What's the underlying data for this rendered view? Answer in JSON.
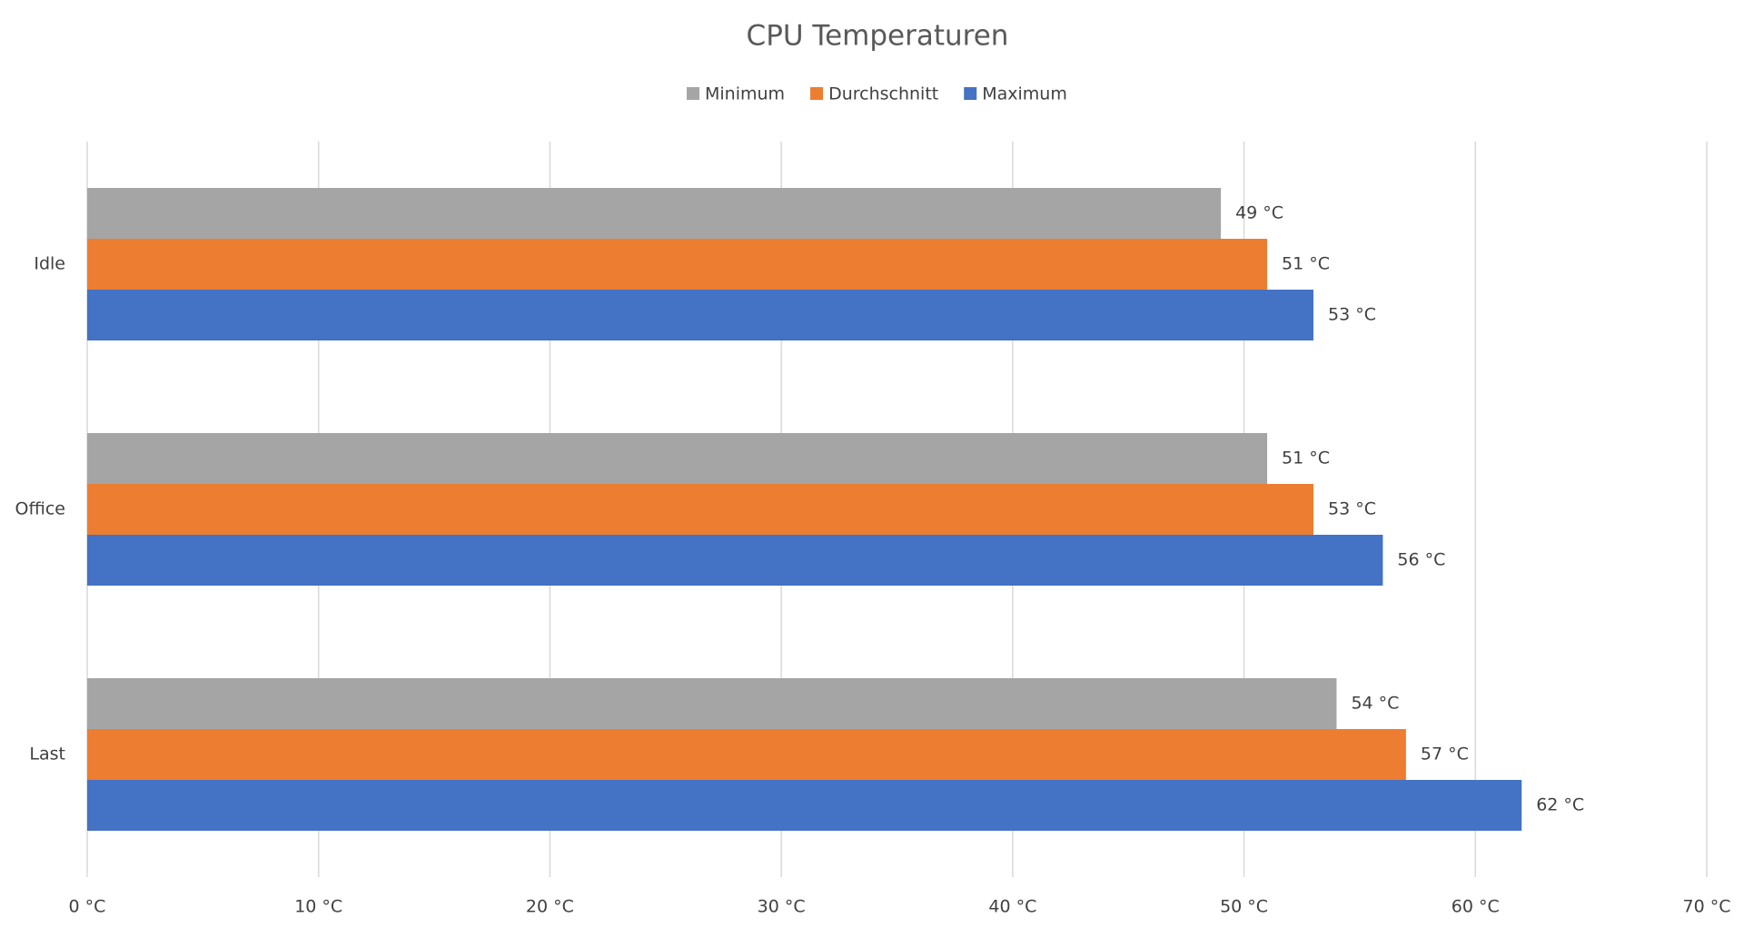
{
  "chart_data": {
    "type": "hbar",
    "title": "CPU Temperaturen",
    "categories": [
      "Idle",
      "Office",
      "Last"
    ],
    "series": [
      {
        "name": "Minimum",
        "color": "#a5a5a5",
        "values": [
          49,
          51,
          54
        ],
        "value_labels": [
          "49 °C",
          "51 °C",
          "54 °C"
        ]
      },
      {
        "name": "Durchschnitt",
        "color": "#ed7d31",
        "values": [
          51,
          53,
          57
        ],
        "value_labels": [
          "51 °C",
          "53 °C",
          "57 °C"
        ]
      },
      {
        "name": "Maximum",
        "color": "#4472c4",
        "values": [
          53,
          56,
          62
        ],
        "value_labels": [
          "53 °C",
          "56 °C",
          "62 °C"
        ]
      }
    ],
    "xlim": [
      0,
      70
    ],
    "xticks": [
      {
        "value": 0,
        "label": "0 °C"
      },
      {
        "value": 10,
        "label": "10 °C"
      },
      {
        "value": 20,
        "label": "20 °C"
      },
      {
        "value": 30,
        "label": "30 °C"
      },
      {
        "value": 40,
        "label": "40 °C"
      },
      {
        "value": 50,
        "label": "50 °C"
      },
      {
        "value": 60,
        "label": "60 °C"
      },
      {
        "value": 70,
        "label": "70 °C"
      }
    ],
    "grid": true,
    "legend": "top"
  }
}
